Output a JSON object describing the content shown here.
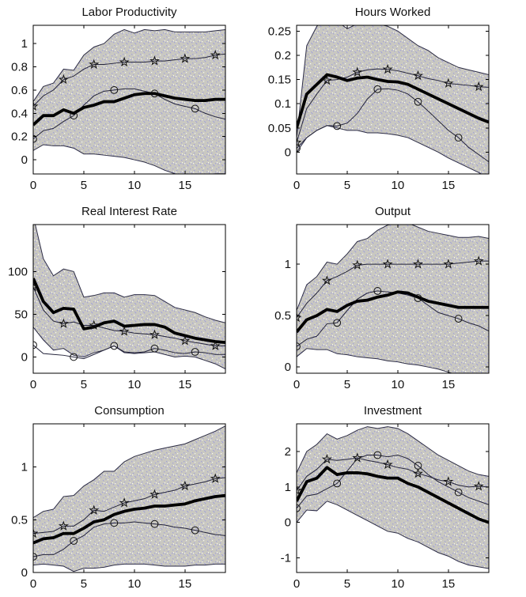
{
  "colors": {
    "background": "#ffffff",
    "band_fill": "#c9c8c1",
    "band_dot_blue": "#a3a3d8",
    "band_dot_white": "#f8f8f5",
    "band_edge": "#2c2c45",
    "median_line": "#000000",
    "series_line": "#23233a",
    "marker": "#111111",
    "axis": "#000000",
    "text": "#111111"
  },
  "chart_data": [
    {
      "type": "line",
      "title": "Labor Productivity",
      "x": [
        0,
        1,
        2,
        3,
        4,
        5,
        6,
        7,
        8,
        9,
        10,
        11,
        12,
        13,
        14,
        15,
        16,
        17,
        18,
        19
      ],
      "xlim": [
        0,
        19
      ],
      "xticks": [
        0,
        5,
        10,
        15
      ],
      "xticklabels": [
        "0",
        "5",
        "10",
        "15"
      ],
      "ylim": [
        -0.122,
        1.157
      ],
      "yticks": [
        0,
        0.2,
        0.4,
        0.6,
        0.8,
        1
      ],
      "yticklabels": [
        "0",
        "0.2",
        "0.4",
        "0.6",
        "0.8",
        "1"
      ],
      "legend": "none",
      "grid": false,
      "series": [
        {
          "name": "band-upper",
          "values": [
            0.5,
            0.63,
            0.66,
            0.78,
            0.77,
            0.9,
            0.97,
            1.0,
            1.08,
            1.12,
            1.09,
            1.12,
            1.11,
            1.12,
            1.1,
            1.1,
            1.1,
            1.1,
            1.11,
            1.12
          ]
        },
        {
          "name": "band-lower",
          "values": [
            0.08,
            0.13,
            0.12,
            0.12,
            0.1,
            0.05,
            0.05,
            0.04,
            0.03,
            0.02,
            0.0,
            -0.02,
            -0.05,
            -0.09,
            -0.12,
            -0.13,
            -0.13,
            -0.13,
            -0.12,
            -0.12
          ]
        },
        {
          "name": "median",
          "values": [
            0.3,
            0.38,
            0.38,
            0.43,
            0.4,
            0.45,
            0.47,
            0.5,
            0.5,
            0.53,
            0.56,
            0.57,
            0.57,
            0.55,
            0.53,
            0.52,
            0.51,
            0.51,
            0.52,
            0.52
          ]
        },
        {
          "name": "star",
          "marker_x": [
            0,
            3,
            6,
            9,
            12,
            15,
            18
          ],
          "values": [
            0.46,
            0.55,
            0.6,
            0.69,
            0.72,
            0.78,
            0.82,
            0.82,
            0.83,
            0.84,
            0.84,
            0.84,
            0.85,
            0.85,
            0.86,
            0.87,
            0.87,
            0.88,
            0.9,
            0.91
          ]
        },
        {
          "name": "circle",
          "marker_x": [
            0,
            4,
            8,
            12,
            16
          ],
          "values": [
            0.18,
            0.25,
            0.27,
            0.33,
            0.38,
            0.47,
            0.55,
            0.59,
            0.6,
            0.61,
            0.61,
            0.59,
            0.57,
            0.52,
            0.48,
            0.46,
            0.44,
            0.4,
            0.37,
            0.35
          ]
        }
      ]
    },
    {
      "type": "line",
      "title": "Hours Worked",
      "x": [
        0,
        1,
        2,
        3,
        4,
        5,
        6,
        7,
        8,
        9,
        10,
        11,
        12,
        13,
        14,
        15,
        16,
        17,
        18,
        19
      ],
      "xlim": [
        0,
        19
      ],
      "xticks": [
        0,
        5,
        10,
        15
      ],
      "xticklabels": [
        "0",
        "5",
        "10",
        "15"
      ],
      "ylim": [
        -0.045,
        0.262
      ],
      "yticks": [
        0,
        0.05,
        0.1,
        0.15,
        0.2,
        0.25
      ],
      "yticklabels": [
        "0",
        "0.05",
        "0.1",
        "0.15",
        "0.2",
        "0.25"
      ],
      "legend": "none",
      "grid": false,
      "series": [
        {
          "name": "band-upper",
          "values": [
            0.03,
            0.22,
            0.26,
            0.28,
            0.27,
            0.255,
            0.265,
            0.27,
            0.265,
            0.26,
            0.25,
            0.235,
            0.22,
            0.21,
            0.195,
            0.185,
            0.175,
            0.17,
            0.165,
            0.16
          ]
        },
        {
          "name": "band-lower",
          "values": [
            0.0,
            0.03,
            0.045,
            0.055,
            0.05,
            0.045,
            0.045,
            0.04,
            0.04,
            0.038,
            0.035,
            0.03,
            0.02,
            0.01,
            0.0,
            -0.012,
            -0.022,
            -0.032,
            -0.042,
            -0.055
          ]
        },
        {
          "name": "median",
          "values": [
            0.05,
            0.12,
            0.14,
            0.16,
            0.155,
            0.148,
            0.153,
            0.155,
            0.15,
            0.146,
            0.145,
            0.14,
            0.13,
            0.12,
            0.11,
            0.1,
            0.09,
            0.08,
            0.07,
            0.062
          ]
        },
        {
          "name": "star",
          "marker_x": [
            0,
            3,
            6,
            9,
            12,
            15,
            18
          ],
          "values": [
            0.02,
            0.09,
            0.12,
            0.148,
            0.15,
            0.155,
            0.165,
            0.17,
            0.172,
            0.171,
            0.168,
            0.163,
            0.158,
            0.152,
            0.148,
            0.142,
            0.14,
            0.138,
            0.135,
            0.134
          ]
        },
        {
          "name": "circle",
          "marker_x": [
            0,
            4,
            8,
            12,
            16
          ],
          "values": [
            0.008,
            0.03,
            0.045,
            0.055,
            0.054,
            0.06,
            0.08,
            0.11,
            0.13,
            0.131,
            0.128,
            0.12,
            0.104,
            0.085,
            0.065,
            0.045,
            0.03,
            0.01,
            -0.005,
            -0.02
          ]
        }
      ]
    },
    {
      "type": "line",
      "title": "Real Interest Rate",
      "x": [
        0,
        1,
        2,
        3,
        4,
        5,
        6,
        7,
        8,
        9,
        10,
        11,
        12,
        13,
        14,
        15,
        16,
        17,
        18,
        19
      ],
      "xlim": [
        0,
        19
      ],
      "xticks": [
        0,
        5,
        10,
        15
      ],
      "xticklabels": [
        "0",
        "5",
        "10",
        "15"
      ],
      "ylim": [
        -19,
        155
      ],
      "yticks": [
        0,
        50,
        100
      ],
      "yticklabels": [
        "0",
        "50",
        "100"
      ],
      "legend": "none",
      "grid": false,
      "series": [
        {
          "name": "band-upper",
          "values": [
            165,
            115,
            95,
            103,
            100,
            70,
            72,
            75,
            75,
            70,
            73,
            73,
            72,
            65,
            58,
            55,
            52,
            47,
            43,
            40
          ]
        },
        {
          "name": "band-lower",
          "values": [
            35,
            20,
            8,
            10,
            2,
            0,
            5,
            8,
            13,
            5,
            4,
            5,
            6,
            3,
            0,
            1,
            0,
            -4,
            -8,
            -14
          ]
        },
        {
          "name": "median",
          "values": [
            92,
            65,
            52,
            57,
            56,
            33,
            35,
            40,
            42,
            36,
            37,
            38,
            38,
            35,
            28,
            25,
            22,
            20,
            18,
            17
          ]
        },
        {
          "name": "star",
          "marker_x": [
            0,
            3,
            6,
            9,
            12,
            15,
            18
          ],
          "values": [
            82,
            55,
            42,
            39,
            41,
            37,
            37,
            34,
            31,
            30,
            28,
            27,
            26,
            24,
            22,
            19,
            17,
            15,
            13,
            13
          ]
        },
        {
          "name": "circle",
          "marker_x": [
            0,
            4,
            8,
            12,
            16
          ],
          "values": [
            14,
            4,
            3,
            2,
            0,
            -2,
            3,
            8,
            13,
            6,
            5,
            6,
            10,
            8,
            5,
            4,
            6,
            5,
            3,
            3
          ]
        }
      ]
    },
    {
      "type": "line",
      "title": "Output",
      "x": [
        0,
        1,
        2,
        3,
        4,
        5,
        6,
        7,
        8,
        9,
        10,
        11,
        12,
        13,
        14,
        15,
        16,
        17,
        18,
        19
      ],
      "xlim": [
        0,
        19
      ],
      "xticks": [
        0,
        5,
        10,
        15
      ],
      "xticklabels": [
        "0",
        "5",
        "10",
        "15"
      ],
      "ylim": [
        -0.06,
        1.385
      ],
      "yticks": [
        0,
        0.5,
        1
      ],
      "yticklabels": [
        "0",
        "0.5",
        "1"
      ],
      "legend": "none",
      "grid": false,
      "series": [
        {
          "name": "band-upper",
          "values": [
            0.55,
            0.8,
            0.88,
            1.02,
            1.0,
            1.1,
            1.22,
            1.25,
            1.33,
            1.38,
            1.4,
            1.4,
            1.36,
            1.32,
            1.3,
            1.28,
            1.26,
            1.26,
            1.27,
            1.25
          ]
        },
        {
          "name": "band-lower",
          "values": [
            0.1,
            0.18,
            0.17,
            0.17,
            0.13,
            0.12,
            0.1,
            0.09,
            0.08,
            0.06,
            0.05,
            0.03,
            0.02,
            0.0,
            -0.02,
            -0.05,
            -0.08,
            -0.09,
            -0.1,
            -0.11
          ]
        },
        {
          "name": "median",
          "values": [
            0.34,
            0.46,
            0.5,
            0.56,
            0.54,
            0.6,
            0.64,
            0.65,
            0.68,
            0.7,
            0.73,
            0.72,
            0.68,
            0.64,
            0.62,
            0.6,
            0.58,
            0.58,
            0.58,
            0.58
          ]
        },
        {
          "name": "star",
          "marker_x": [
            0,
            3,
            6,
            9,
            12,
            15,
            18
          ],
          "values": [
            0.48,
            0.62,
            0.72,
            0.84,
            0.88,
            0.93,
            0.99,
            1.0,
            1.0,
            1.0,
            1.0,
            1.0,
            1.0,
            1.0,
            1.0,
            1.0,
            1.01,
            1.02,
            1.03,
            1.03
          ]
        },
        {
          "name": "circle",
          "marker_x": [
            0,
            4,
            8,
            12,
            16
          ],
          "values": [
            0.2,
            0.27,
            0.3,
            0.42,
            0.43,
            0.55,
            0.66,
            0.72,
            0.74,
            0.73,
            0.72,
            0.7,
            0.67,
            0.6,
            0.53,
            0.5,
            0.47,
            0.43,
            0.4,
            0.35
          ]
        }
      ]
    },
    {
      "type": "line",
      "title": "Consumption",
      "x": [
        0,
        1,
        2,
        3,
        4,
        5,
        6,
        7,
        8,
        9,
        10,
        11,
        12,
        13,
        14,
        15,
        16,
        17,
        18,
        19
      ],
      "xlim": [
        0,
        19
      ],
      "xticks": [
        0,
        5,
        10,
        15
      ],
      "xticklabels": [
        "0",
        "5",
        "10",
        "15"
      ],
      "ylim": [
        0,
        1.41
      ],
      "yticks": [
        0,
        0.5,
        1
      ],
      "yticklabels": [
        "0",
        "0.5",
        "1"
      ],
      "legend": "none",
      "grid": false,
      "series": [
        {
          "name": "band-upper",
          "values": [
            0.52,
            0.58,
            0.6,
            0.72,
            0.73,
            0.82,
            0.88,
            0.96,
            0.96,
            1.05,
            1.1,
            1.13,
            1.16,
            1.18,
            1.2,
            1.22,
            1.26,
            1.3,
            1.34,
            1.39
          ]
        },
        {
          "name": "band-lower",
          "values": [
            0.07,
            0.08,
            0.07,
            0.06,
            0.01,
            0.04,
            0.04,
            0.05,
            0.07,
            0.08,
            0.08,
            0.08,
            0.07,
            0.06,
            0.06,
            0.06,
            0.07,
            0.07,
            0.08,
            0.08
          ]
        },
        {
          "name": "median",
          "values": [
            0.28,
            0.32,
            0.33,
            0.37,
            0.37,
            0.42,
            0.48,
            0.5,
            0.55,
            0.58,
            0.6,
            0.61,
            0.63,
            0.63,
            0.64,
            0.65,
            0.68,
            0.7,
            0.72,
            0.73
          ]
        },
        {
          "name": "star",
          "marker_x": [
            0,
            3,
            6,
            9,
            12,
            15,
            18
          ],
          "values": [
            0.37,
            0.38,
            0.39,
            0.44,
            0.44,
            0.5,
            0.59,
            0.58,
            0.62,
            0.66,
            0.68,
            0.7,
            0.74,
            0.76,
            0.78,
            0.82,
            0.84,
            0.86,
            0.89,
            0.9
          ]
        },
        {
          "name": "circle",
          "marker_x": [
            0,
            4,
            8,
            12,
            16
          ],
          "values": [
            0.15,
            0.17,
            0.17,
            0.22,
            0.3,
            0.35,
            0.43,
            0.46,
            0.47,
            0.47,
            0.48,
            0.47,
            0.46,
            0.45,
            0.43,
            0.42,
            0.4,
            0.38,
            0.36,
            0.35
          ]
        }
      ]
    },
    {
      "type": "line",
      "title": "Investment",
      "x": [
        0,
        1,
        2,
        3,
        4,
        5,
        6,
        7,
        8,
        9,
        10,
        11,
        12,
        13,
        14,
        15,
        16,
        17,
        18,
        19
      ],
      "xlim": [
        0,
        19
      ],
      "xticks": [
        0,
        5,
        10,
        15
      ],
      "xticklabels": [
        "0",
        "5",
        "10",
        "15"
      ],
      "ylim": [
        -1.41,
        2.78
      ],
      "yticks": [
        -1,
        0,
        1,
        2
      ],
      "yticklabels": [
        "-1",
        "0",
        "1",
        "2"
      ],
      "legend": "none",
      "grid": false,
      "series": [
        {
          "name": "band-upper",
          "values": [
            1.4,
            2.0,
            2.2,
            2.5,
            2.35,
            2.45,
            2.6,
            2.7,
            2.65,
            2.7,
            2.65,
            2.5,
            2.3,
            2.1,
            1.9,
            1.75,
            1.6,
            1.45,
            1.35,
            1.3
          ]
        },
        {
          "name": "band-lower",
          "values": [
            0.0,
            0.35,
            0.33,
            0.6,
            0.5,
            0.35,
            0.2,
            0.05,
            -0.1,
            -0.25,
            -0.3,
            -0.45,
            -0.55,
            -0.7,
            -0.85,
            -0.95,
            -1.1,
            -1.2,
            -1.25,
            -1.3
          ]
        },
        {
          "name": "median",
          "values": [
            0.6,
            1.15,
            1.25,
            1.55,
            1.35,
            1.4,
            1.4,
            1.37,
            1.3,
            1.25,
            1.25,
            1.1,
            1.0,
            0.85,
            0.7,
            0.55,
            0.4,
            0.25,
            0.1,
            0.0
          ]
        },
        {
          "name": "star",
          "marker_x": [
            0,
            3,
            6,
            9,
            12,
            15,
            18
          ],
          "values": [
            0.9,
            1.3,
            1.5,
            1.78,
            1.75,
            1.78,
            1.82,
            1.75,
            1.7,
            1.63,
            1.55,
            1.5,
            1.38,
            1.3,
            1.2,
            1.15,
            1.05,
            1.0,
            1.02,
            1.0
          ]
        },
        {
          "name": "circle",
          "marker_x": [
            0,
            4,
            8,
            12,
            16
          ],
          "values": [
            0.4,
            0.75,
            0.8,
            0.95,
            1.1,
            1.45,
            1.8,
            1.9,
            1.9,
            1.85,
            1.9,
            1.8,
            1.6,
            1.35,
            1.15,
            1.0,
            0.85,
            0.7,
            0.6,
            0.5
          ]
        }
      ]
    }
  ]
}
